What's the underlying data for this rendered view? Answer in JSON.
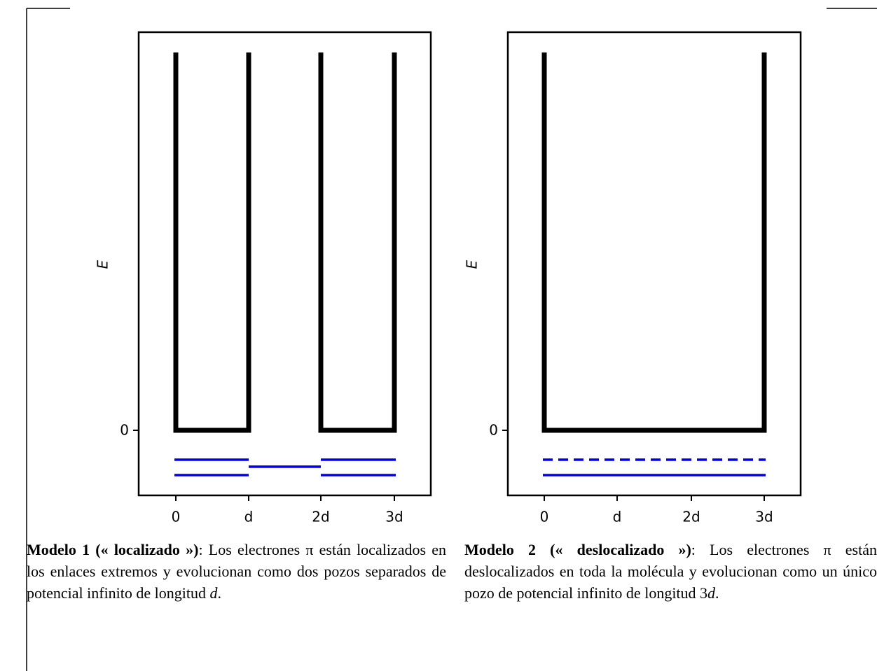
{
  "panels": [
    {
      "y_label": "E",
      "y_tick": "0",
      "x_ticks": [
        "0",
        "d",
        "2d",
        "3d"
      ],
      "caption": {
        "title": "Modelo 1 (« localizado »)",
        "text": ": Los electrones π están localizados en los enlaces extremos y evolucionan como dos pozos separados de potencial infinito de longitud ",
        "variable": "d",
        "end": "."
      }
    },
    {
      "y_label": "E",
      "y_tick": "0",
      "x_ticks": [
        "0",
        "d",
        "2d",
        "3d"
      ],
      "caption": {
        "title": "Modelo 2 (« deslocalizado »)",
        "text": ": Los electrones π están deslocalizados en toda la molécula y evolucionan como un único pozo de potencial infinito de longitud 3",
        "variable": "d",
        "end": "."
      }
    }
  ]
}
